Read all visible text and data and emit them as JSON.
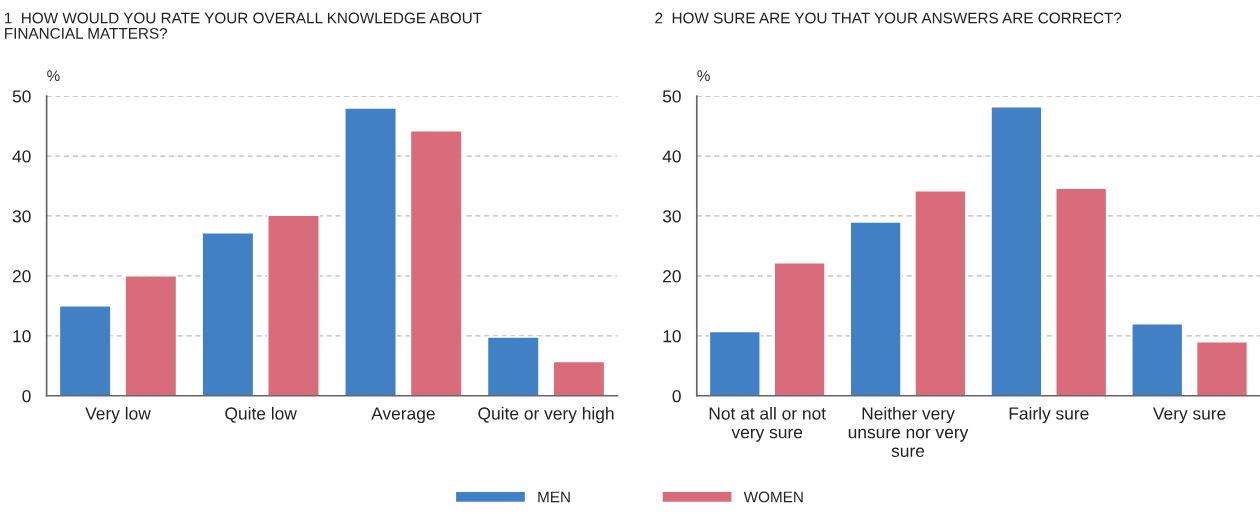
{
  "chart_data": [
    {
      "type": "bar",
      "title": "1  HOW WOULD YOU RATE YOUR OVERALL KNOWLEDGE ABOUT FINANCIAL MATTERS?",
      "ylabel": "%",
      "categories": [
        "Very low",
        "Quite low",
        "Average",
        "Quite or very high"
      ],
      "series": [
        {
          "name": "MEN",
          "color": "#4180c4",
          "values": [
            15,
            27.2,
            48,
            9.8
          ]
        },
        {
          "name": "WOMEN",
          "color": "#d86c7a",
          "values": [
            20,
            30.1,
            44.2,
            5.7
          ]
        }
      ],
      "ylim": [
        0,
        50
      ],
      "yticks": [
        0,
        10,
        20,
        30,
        40,
        50
      ],
      "grid": "y",
      "legend": "bottom"
    },
    {
      "type": "bar",
      "title": "2  HOW SURE ARE YOU THAT YOUR ANSWERS ARE CORRECT?",
      "ylabel": "%",
      "categories": [
        "Not at all or not very sure",
        "Neither very unsure nor very sure",
        "Fairly sure",
        "Very sure"
      ],
      "series": [
        {
          "name": "MEN",
          "color": "#4180c4",
          "values": [
            10.7,
            29.0,
            48.2,
            12.0
          ]
        },
        {
          "name": "WOMEN",
          "color": "#d86c7a",
          "values": [
            22.2,
            34.2,
            34.6,
            9.0
          ]
        }
      ],
      "ylim": [
        0,
        50
      ],
      "yticks": [
        0,
        10,
        20,
        30,
        40,
        50
      ],
      "grid": "y",
      "legend": "bottom"
    }
  ]
}
